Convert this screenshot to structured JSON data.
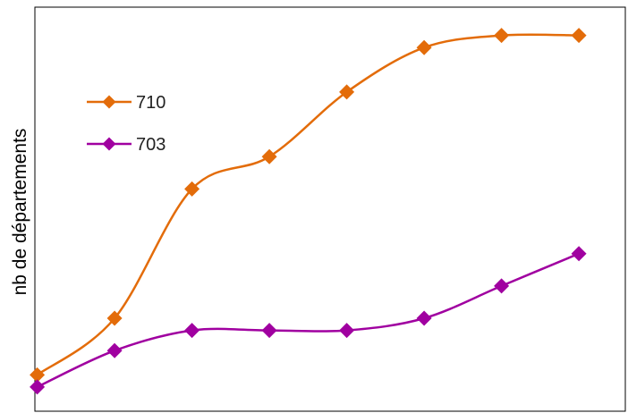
{
  "chart_data": {
    "type": "line",
    "title": "",
    "xlabel": "",
    "ylabel": "nb de départements",
    "x": [
      1,
      2,
      3,
      4,
      5,
      6,
      7,
      8
    ],
    "xlim": [
      0.97,
      8.6
    ],
    "ylim": [
      0,
      100
    ],
    "grid": false,
    "smooth": true,
    "legend_position": "left",
    "series": [
      {
        "name": "710",
        "color": "#E36C0A",
        "marker": "diamond",
        "values": [
          9,
          23,
          55,
          63,
          79,
          90,
          93,
          93
        ]
      },
      {
        "name": "703",
        "color": "#A000A0",
        "marker": "diamond",
        "values": [
          6,
          15,
          20,
          20,
          20,
          23,
          31,
          39
        ]
      }
    ]
  }
}
